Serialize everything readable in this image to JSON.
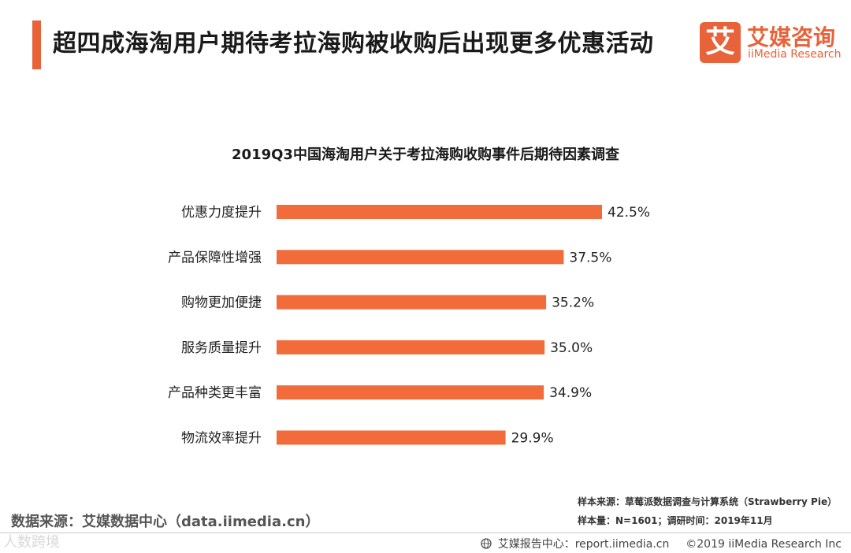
{
  "header": {
    "title": "超四成海淘用户期待考拉海购被收购后出现更多优惠活动",
    "accent_color": "#E8623A"
  },
  "logo": {
    "mark": "艾",
    "name_cn": "艾媒咨询",
    "name_en": "iiMedia Research",
    "color": "#E8623A"
  },
  "chart_data": {
    "type": "bar",
    "orientation": "horizontal",
    "title": "2019Q3中国海淘用户关于考拉海购收购事件后期待因素调查",
    "categories": [
      "优惠力度提升",
      "产品保障性增强",
      "购物更加便捷",
      "服务质量提升",
      "产品种类更丰富",
      "物流效率提升"
    ],
    "values": [
      42.5,
      37.5,
      35.2,
      35.0,
      34.9,
      29.9
    ],
    "value_labels": [
      "42.5%",
      "37.5%",
      "35.2%",
      "35.0%",
      "34.9%",
      "29.9%"
    ],
    "unit": "%",
    "xlim": [
      0,
      42.5
    ],
    "bar_color": "#F26B3A",
    "xlabel": "",
    "ylabel": ""
  },
  "footer": {
    "sample_source": "样本来源：草莓派数据调查与计算系统（Strawberry Pie）",
    "sample_size": "样本量：N=1601；调研时间：2019年11月",
    "data_source": "数据来源：艾媒数据中心（data.iimedia.cn）",
    "watermark": "人数跨境",
    "report_center": "艾媒报告中心：report.iimedia.cn",
    "copyright": "©2019  iiMedia Research  Inc"
  }
}
